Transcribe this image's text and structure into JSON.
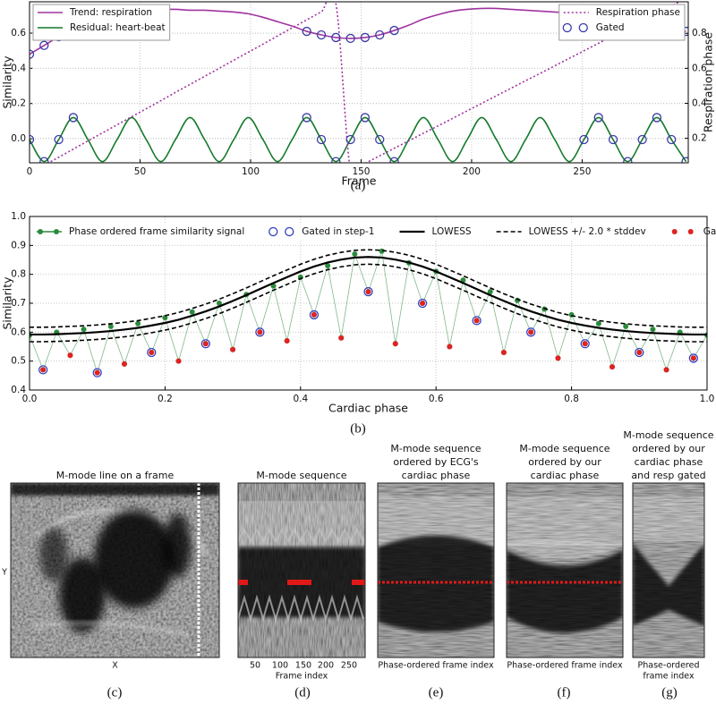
{
  "chart_data": [
    {
      "type": "line",
      "caption": "(a)",
      "xlabel": "Frame",
      "ylabel": "Similarity",
      "y2label": "Respiration phase",
      "xlim": [
        0,
        298
      ],
      "xticks": [
        0,
        50,
        100,
        150,
        200,
        250
      ],
      "ylim": [
        -0.137,
        0.778
      ],
      "yticks": [
        {
          "value": 0,
          "label": "0.0"
        },
        0.2,
        0.4,
        0.6
      ],
      "y2lim": [
        0.06,
        0.98
      ],
      "y2ticks": [
        0.2,
        0.4,
        0.6,
        0.8
      ],
      "grid": true,
      "x": [
        0,
        6.6,
        13.2,
        19.8,
        26.4,
        33,
        39.6,
        46.2,
        52.8,
        59.4,
        66,
        72.6,
        79.2,
        85.8,
        92.4,
        99,
        105.6,
        112.2,
        118.8,
        125.4,
        132,
        138.6,
        145.2,
        151.8,
        158.4,
        165,
        171.6,
        178.2,
        184.8,
        191.4,
        198,
        204.6,
        211.2,
        217.8,
        224.4,
        231,
        237.6,
        244.2,
        250.8,
        257.4,
        264,
        270.6,
        277.2,
        283.8,
        290.4,
        297
      ],
      "series": [
        {
          "name": "Trend: respiration",
          "color": "#a0339f",
          "linestyle": "solid",
          "legend": "upper left",
          "values": [
            0.48,
            0.53,
            0.58,
            0.63,
            0.67,
            0.7,
            0.72,
            0.73,
            0.735,
            0.735,
            0.735,
            0.73,
            0.73,
            0.725,
            0.72,
            0.71,
            0.69,
            0.665,
            0.64,
            0.61,
            0.59,
            0.575,
            0.57,
            0.575,
            0.59,
            0.615,
            0.645,
            0.68,
            0.705,
            0.725,
            0.735,
            0.74,
            0.74,
            0.735,
            0.73,
            0.725,
            0.72,
            0.715,
            0.71,
            0.7,
            0.685,
            0.67,
            0.655,
            0.64,
            0.625,
            0.61
          ]
        },
        {
          "name": "Residual: heart-beat",
          "color": "#157a2b",
          "linestyle": "solid",
          "legend": "upper left",
          "values": [
            -0.005,
            -0.13,
            -0.005,
            0.12,
            -0.005,
            -0.13,
            -0.005,
            0.12,
            -0.005,
            -0.13,
            -0.005,
            0.12,
            -0.005,
            -0.13,
            -0.005,
            0.12,
            -0.005,
            -0.13,
            -0.005,
            0.12,
            -0.005,
            -0.13,
            -0.005,
            0.12,
            -0.005,
            -0.13,
            -0.005,
            0.12,
            -0.005,
            -0.13,
            -0.005,
            0.12,
            -0.005,
            -0.13,
            -0.005,
            0.12,
            -0.005,
            -0.13,
            -0.005,
            0.12,
            -0.005,
            -0.13,
            -0.005,
            0.12,
            -0.005,
            -0.13
          ]
        },
        {
          "name": "Respiration phase",
          "color": "#a0339f",
          "linestyle": "dotted",
          "axis": "y2",
          "legend": "upper right",
          "values": [
            0,
            0.046,
            0.092,
            0.138,
            0.185,
            0.231,
            0.277,
            0.323,
            0.369,
            0.415,
            0.462,
            0.508,
            0.554,
            0.6,
            0.646,
            0.692,
            0.738,
            0.785,
            0.831,
            0.877,
            0.923,
            0.969,
            0.014,
            0.057,
            0.1,
            0.143,
            0.186,
            0.229,
            0.271,
            0.314,
            0.357,
            0.4,
            0.443,
            0.486,
            0.529,
            0.571,
            0.614,
            0.657,
            0.7,
            0.743,
            0.786,
            0.829,
            0.871,
            0.914,
            0.957,
            1.0
          ]
        },
        {
          "name": "Gated",
          "color": "#3a3aa8",
          "linestyle": "none",
          "marker": "ring",
          "legend": "upper right",
          "values": [
            0.48,
            0.53,
            0.58,
            0.63,
            null,
            null,
            null,
            null,
            null,
            null,
            null,
            null,
            null,
            null,
            null,
            null,
            null,
            null,
            null,
            0.61,
            0.59,
            0.575,
            0.57,
            0.575,
            0.59,
            0.615,
            null,
            null,
            null,
            null,
            null,
            null,
            null,
            null,
            null,
            null,
            null,
            null,
            0.71,
            0.7,
            0.685,
            0.67,
            0.655,
            0.64,
            0.625,
            0.61
          ],
          "residual_values": [
            -0.005,
            -0.13,
            -0.005,
            0.12,
            null,
            null,
            null,
            null,
            null,
            null,
            null,
            null,
            null,
            null,
            null,
            null,
            null,
            null,
            null,
            0.12,
            -0.005,
            -0.13,
            -0.005,
            0.12,
            -0.005,
            -0.13,
            null,
            null,
            null,
            null,
            null,
            null,
            null,
            null,
            null,
            null,
            null,
            null,
            -0.005,
            0.12,
            -0.005,
            -0.13,
            -0.005,
            0.12,
            -0.005,
            -0.13
          ]
        }
      ]
    },
    {
      "type": "line",
      "caption": "(b)",
      "xlabel": "Cardiac phase",
      "ylabel": "Similarity",
      "legend": "upper center",
      "xlim": [
        0,
        1
      ],
      "xticks": [
        {
          "value": 0,
          "label": "0.0"
        },
        0.2,
        0.4,
        0.6,
        0.8,
        {
          "value": 1,
          "label": "1.0"
        }
      ],
      "ylim": [
        0.4,
        1.0
      ],
      "yticks": [
        0.4,
        0.5,
        0.6,
        0.7,
        0.8,
        0.9,
        {
          "value": 1,
          "label": "1.0"
        }
      ],
      "grid": true,
      "x": [
        0,
        0.02,
        0.04,
        0.06,
        0.08,
        0.1,
        0.12,
        0.14,
        0.16,
        0.18,
        0.2,
        0.22,
        0.24,
        0.26,
        0.28,
        0.3,
        0.32,
        0.34,
        0.36,
        0.38,
        0.4,
        0.42,
        0.44,
        0.46,
        0.48,
        0.5,
        0.52,
        0.54,
        0.56,
        0.58,
        0.6,
        0.62,
        0.64,
        0.66,
        0.68,
        0.7,
        0.72,
        0.74,
        0.76,
        0.78,
        0.8,
        0.82,
        0.84,
        0.86,
        0.88,
        0.9,
        0.92,
        0.94,
        0.96,
        0.98,
        1
      ],
      "series": [
        {
          "name": "Phase ordered frame similarity signal",
          "color": "#2b8a3c",
          "linestyle": "solid",
          "marker": "dot",
          "values": [
            0.59,
            0.47,
            0.6,
            0.52,
            0.61,
            0.46,
            0.62,
            0.49,
            0.63,
            0.53,
            0.65,
            0.5,
            0.67,
            0.56,
            0.7,
            0.54,
            0.73,
            0.6,
            0.76,
            0.57,
            0.79,
            0.66,
            0.83,
            0.58,
            0.87,
            0.74,
            0.88,
            0.56,
            0.84,
            0.7,
            0.81,
            0.55,
            0.78,
            0.64,
            0.74,
            0.53,
            0.71,
            0.6,
            0.68,
            0.51,
            0.66,
            0.56,
            0.63,
            0.48,
            0.62,
            0.53,
            0.61,
            0.47,
            0.6,
            0.51,
            0.59
          ]
        },
        {
          "name": "Gated in step-1",
          "color": "#3340c0",
          "linestyle": "none",
          "marker": "ring",
          "values": [
            null,
            0.47,
            null,
            null,
            null,
            0.46,
            null,
            null,
            null,
            0.53,
            null,
            null,
            null,
            0.56,
            null,
            null,
            null,
            0.6,
            null,
            null,
            null,
            0.66,
            null,
            null,
            null,
            0.74,
            null,
            null,
            null,
            0.7,
            null,
            null,
            null,
            0.64,
            null,
            null,
            null,
            0.6,
            null,
            null,
            null,
            0.56,
            null,
            null,
            null,
            0.53,
            null,
            null,
            null,
            0.51,
            null
          ]
        },
        {
          "name": "LOWESS",
          "color": "#000000",
          "linestyle": "solid",
          "linewidth": 2.2,
          "values": [
            0.592,
            0.592,
            0.593,
            0.595,
            0.597,
            0.6,
            0.604,
            0.609,
            0.615,
            0.623,
            0.632,
            0.643,
            0.657,
            0.672,
            0.689,
            0.708,
            0.728,
            0.749,
            0.77,
            0.79,
            0.81,
            0.827,
            0.841,
            0.851,
            0.858,
            0.86,
            0.858,
            0.851,
            0.841,
            0.827,
            0.81,
            0.79,
            0.77,
            0.749,
            0.728,
            0.708,
            0.689,
            0.672,
            0.657,
            0.643,
            0.632,
            0.623,
            0.615,
            0.609,
            0.604,
            0.6,
            0.597,
            0.595,
            0.593,
            0.592,
            0.592
          ]
        },
        {
          "name": "LOWESS +/- 2.0 * stddev",
          "color": "#000000",
          "linestyle": "dashed",
          "values": [
            0.617,
            0.617,
            0.618,
            0.62,
            0.622,
            0.625,
            0.629,
            0.634,
            0.64,
            0.648,
            0.657,
            0.668,
            0.682,
            0.697,
            0.714,
            0.733,
            0.753,
            0.774,
            0.795,
            0.815,
            0.835,
            0.852,
            0.866,
            0.876,
            0.883,
            0.885,
            0.883,
            0.876,
            0.866,
            0.852,
            0.835,
            0.815,
            0.795,
            0.774,
            0.753,
            0.733,
            0.714,
            0.697,
            0.682,
            0.668,
            0.657,
            0.648,
            0.64,
            0.634,
            0.629,
            0.625,
            0.622,
            0.62,
            0.618,
            0.617,
            0.617
          ],
          "lower_values": [
            0.567,
            0.567,
            0.568,
            0.57,
            0.572,
            0.575,
            0.579,
            0.584,
            0.59,
            0.598,
            0.607,
            0.618,
            0.632,
            0.647,
            0.664,
            0.683,
            0.703,
            0.724,
            0.745,
            0.765,
            0.785,
            0.802,
            0.816,
            0.826,
            0.833,
            0.835,
            0.833,
            0.826,
            0.816,
            0.802,
            0.785,
            0.765,
            0.745,
            0.724,
            0.703,
            0.683,
            0.664,
            0.647,
            0.632,
            0.618,
            0.607,
            0.598,
            0.59,
            0.584,
            0.579,
            0.575,
            0.572,
            0.57,
            0.568,
            0.567,
            0.567
          ]
        },
        {
          "name": "Gated",
          "color": "#e02222",
          "linestyle": "none",
          "marker": "dot",
          "values": [
            null,
            0.47,
            null,
            0.52,
            null,
            0.46,
            null,
            0.49,
            null,
            0.53,
            null,
            0.5,
            null,
            0.56,
            null,
            0.54,
            null,
            0.6,
            null,
            0.57,
            null,
            0.66,
            null,
            0.58,
            null,
            0.74,
            null,
            0.56,
            null,
            0.7,
            null,
            0.55,
            null,
            0.64,
            null,
            0.53,
            null,
            0.6,
            null,
            0.51,
            null,
            0.56,
            null,
            0.48,
            null,
            0.53,
            null,
            0.47,
            null,
            0.51,
            null
          ]
        }
      ]
    }
  ],
  "image_panels": [
    {
      "title": [
        "M-mode line on a frame"
      ],
      "xlabel": [
        "X"
      ],
      "ylabel": "Y",
      "caption": "(c)"
    },
    {
      "title": [
        "M-mode sequence"
      ],
      "xticks": [
        "50",
        "100",
        "150",
        "200",
        "250"
      ],
      "xlabel": [
        "Frame index"
      ],
      "caption": "(d)"
    },
    {
      "title": [
        "M-mode sequence",
        "ordered by ECG's",
        "cardiac phase"
      ],
      "xlabel": [
        "Phase-ordered frame index"
      ],
      "caption": "(e)"
    },
    {
      "title": [
        "M-mode sequence",
        "ordered by our",
        "cardiac phase"
      ],
      "xlabel": [
        "Phase-ordered frame index"
      ],
      "caption": "(f)"
    },
    {
      "title": [
        "M-mode sequence",
        "ordered by our",
        "cardiac phase",
        "and resp gated"
      ],
      "xlabel": [
        "Phase-ordered",
        "frame index"
      ],
      "caption": "(g)"
    }
  ]
}
